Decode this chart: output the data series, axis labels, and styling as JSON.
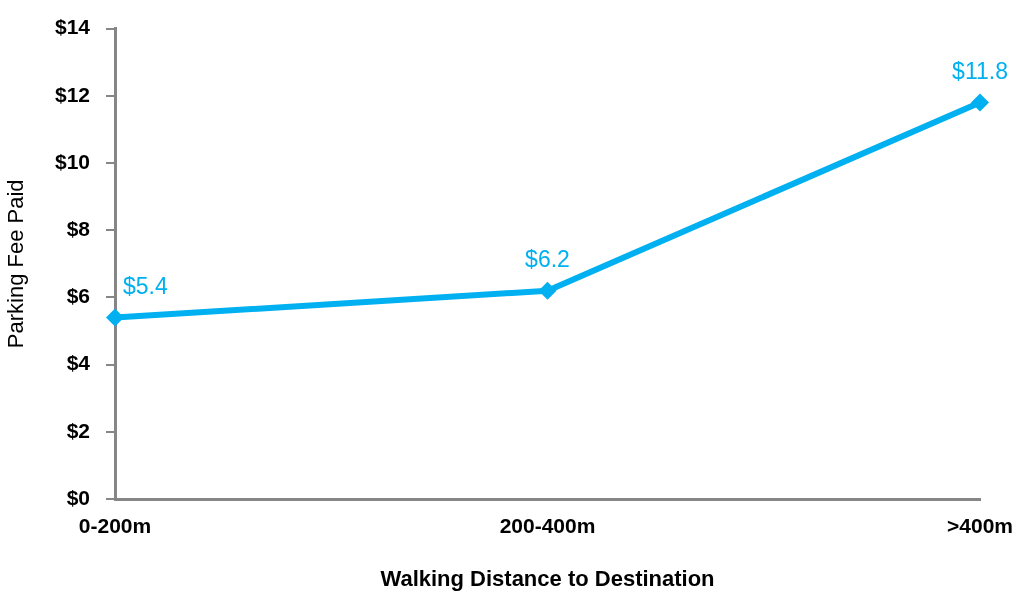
{
  "chart_data": {
    "type": "line",
    "xlabel": "Walking Distance to Destination",
    "ylabel": "Parking Fee Paid",
    "categories": [
      "0-200m",
      "200-400m",
      ">400m"
    ],
    "series": [
      {
        "color": "#00b0f0",
        "values": [
          5.4,
          6.2,
          11.8
        ],
        "value_labels": [
          "$5.4",
          "$6.2",
          "$11.8"
        ]
      }
    ],
    "ylim": [
      0,
      14
    ],
    "yticks": [
      {
        "value": 0,
        "label": "$0"
      },
      {
        "value": 2,
        "label": "$2"
      },
      {
        "value": 4,
        "label": "$4"
      },
      {
        "value": 6,
        "label": "$6"
      },
      {
        "value": 8,
        "label": "$8"
      },
      {
        "value": 10,
        "label": "$10"
      },
      {
        "value": 12,
        "label": "$12"
      },
      {
        "value": 14,
        "label": "$14"
      }
    ],
    "grid": false,
    "legend": false,
    "marker": "diamond",
    "line_style": "solid"
  }
}
